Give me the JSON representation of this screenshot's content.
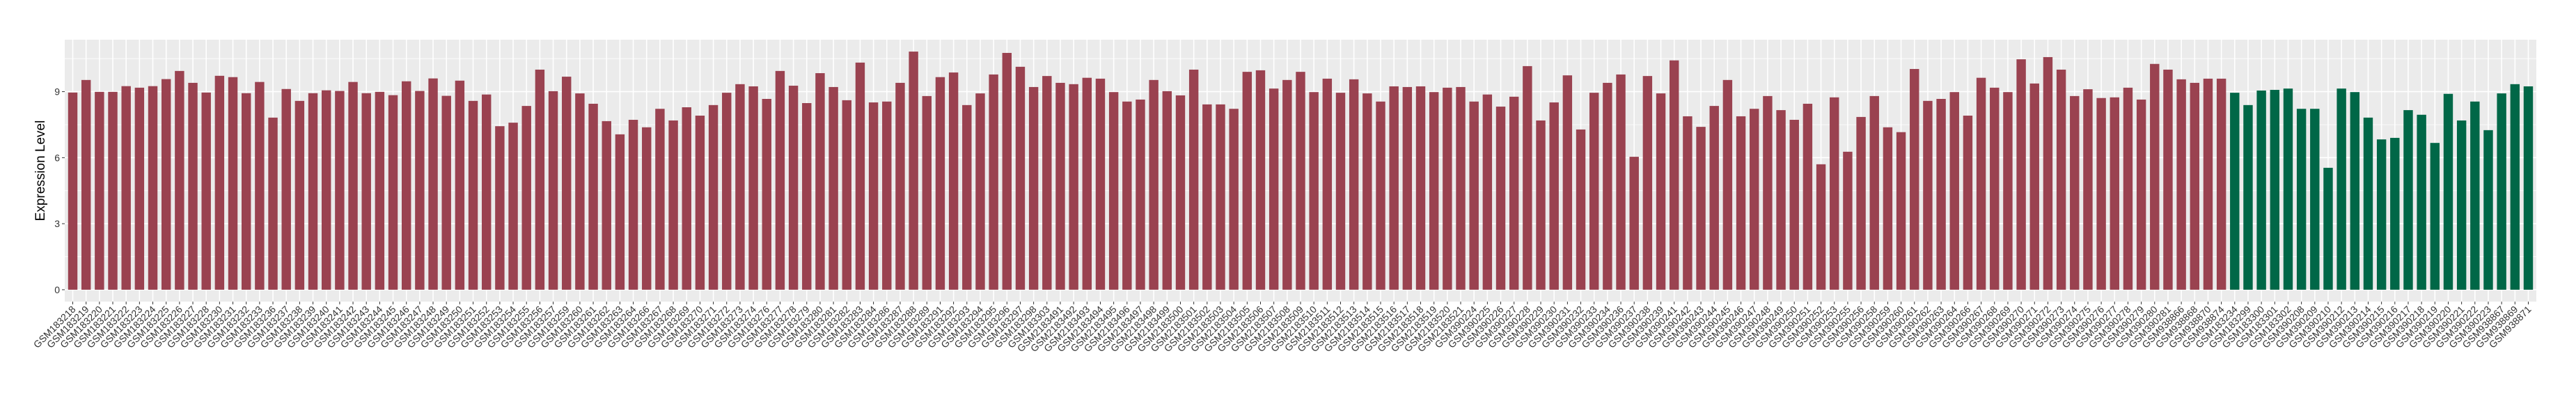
{
  "chart_data": {
    "type": "bar",
    "title": "",
    "xlabel": "",
    "ylabel": "Expression Level",
    "ylim": [
      -0.54,
      11.36
    ],
    "yticks": [
      0,
      3,
      6,
      9
    ],
    "yticks_minor": [
      1.5,
      4.5,
      7.5,
      10.5
    ],
    "grid": true,
    "legend": "none",
    "panel_background": "#EBEBEB",
    "grid_color": "#FFFFFF",
    "categories": [
      "GSM183218",
      "GSM183219",
      "GSM183220",
      "GSM183221",
      "GSM183222",
      "GSM183223",
      "GSM183224",
      "GSM183225",
      "GSM183226",
      "GSM183227",
      "GSM183228",
      "GSM183230",
      "GSM183231",
      "GSM183232",
      "GSM183233",
      "GSM183236",
      "GSM183237",
      "GSM183238",
      "GSM183239",
      "GSM183240",
      "GSM183241",
      "GSM183242",
      "GSM183243",
      "GSM183244",
      "GSM183245",
      "GSM183246",
      "GSM183247",
      "GSM183248",
      "GSM183249",
      "GSM183250",
      "GSM183251",
      "GSM183252",
      "GSM183253",
      "GSM183254",
      "GSM183255",
      "GSM183256",
      "GSM183257",
      "GSM183259",
      "GSM183260",
      "GSM183261",
      "GSM183262",
      "GSM183263",
      "GSM183264",
      "GSM183266",
      "GSM183267",
      "GSM183268",
      "GSM183269",
      "GSM183270",
      "GSM183271",
      "GSM183272",
      "GSM183273",
      "GSM183274",
      "GSM183276",
      "GSM183277",
      "GSM183278",
      "GSM183279",
      "GSM183280",
      "GSM183281",
      "GSM183282",
      "GSM183283",
      "GSM183284",
      "GSM183286",
      "GSM183287",
      "GSM183288",
      "GSM183289",
      "GSM183291",
      "GSM183292",
      "GSM183293",
      "GSM183294",
      "GSM183295",
      "GSM183296",
      "GSM183297",
      "GSM183298",
      "GSM183303",
      "GSM2183491",
      "GSM2183492",
      "GSM2183493",
      "GSM2183494",
      "GSM2183495",
      "GSM2183496",
      "GSM2183497",
      "GSM2183498",
      "GSM2183499",
      "GSM2183500",
      "GSM2183501",
      "GSM2183502",
      "GSM2183503",
      "GSM2183504",
      "GSM2183505",
      "GSM2183506",
      "GSM2183507",
      "GSM2183508",
      "GSM2183509",
      "GSM2183510",
      "GSM2183511",
      "GSM2183512",
      "GSM2183513",
      "GSM2183514",
      "GSM2183515",
      "GSM2183516",
      "GSM2183517",
      "GSM2183518",
      "GSM2183519",
      "GSM2183520",
      "GSM2183521",
      "GSM390224",
      "GSM390225",
      "GSM390226",
      "GSM390227",
      "GSM390228",
      "GSM390229",
      "GSM390230",
      "GSM390231",
      "GSM390232",
      "GSM390233",
      "GSM390234",
      "GSM390236",
      "GSM390237",
      "GSM390238",
      "GSM390239",
      "GSM390241",
      "GSM390242",
      "GSM390243",
      "GSM390244",
      "GSM390245",
      "GSM390246",
      "GSM390247",
      "GSM390248",
      "GSM390249",
      "GSM390250",
      "GSM390251",
      "GSM390252",
      "GSM390253",
      "GSM390255",
      "GSM390256",
      "GSM390258",
      "GSM390259",
      "GSM390260",
      "GSM390261",
      "GSM390262",
      "GSM390263",
      "GSM390264",
      "GSM390266",
      "GSM390267",
      "GSM390268",
      "GSM390269",
      "GSM390270",
      "GSM390271",
      "GSM390272",
      "GSM390273",
      "GSM390274",
      "GSM390275",
      "GSM390276",
      "GSM390277",
      "GSM390278",
      "GSM390279",
      "GSM390280",
      "GSM390281",
      "GSM938866",
      "GSM938868",
      "GSM938870",
      "GSM938874",
      "GSM183234",
      "GSM183299",
      "GSM183300",
      "GSM183301",
      "GSM183302",
      "GSM390208",
      "GSM390209",
      "GSM390210",
      "GSM390212",
      "GSM390213",
      "GSM390214",
      "GSM390215",
      "GSM390216",
      "GSM390217",
      "GSM390218",
      "GSM390219",
      "GSM390220",
      "GSM390221",
      "GSM390222",
      "GSM390223",
      "GSM938867",
      "GSM938869",
      "GSM938871"
    ],
    "values": [
      8.96,
      9.53,
      8.99,
      8.99,
      9.25,
      9.18,
      9.25,
      9.57,
      9.94,
      9.4,
      8.96,
      9.72,
      9.66,
      8.93,
      9.44,
      7.82,
      9.12,
      8.58,
      8.93,
      9.06,
      9.03,
      9.44,
      8.93,
      8.99,
      8.84,
      9.47,
      9.03,
      9.6,
      8.81,
      9.5,
      8.58,
      8.87,
      7.43,
      7.59,
      8.35,
      10.0,
      9.02,
      9.68,
      8.92,
      8.45,
      7.66,
      7.06,
      7.72,
      7.38,
      8.22,
      7.69,
      8.29,
      7.91,
      8.39,
      8.95,
      9.34,
      9.24,
      8.67,
      9.94,
      9.27,
      8.48,
      9.84,
      9.21,
      8.61,
      10.32,
      8.51,
      8.55,
      9.4,
      10.82,
      8.8,
      9.66,
      9.87,
      8.39,
      8.92,
      9.78,
      10.76,
      10.13,
      9.21,
      9.71,
      9.4,
      9.34,
      9.63,
      9.59,
      8.98,
      8.55,
      8.64,
      9.53,
      9.02,
      8.83,
      10.0,
      8.42,
      8.42,
      8.22,
      9.9,
      9.97,
      9.14,
      9.53,
      9.9,
      8.98,
      9.59,
      8.95,
      9.56,
      8.92,
      8.55,
      9.24,
      9.21,
      9.24,
      8.98,
      9.18,
      9.21,
      8.55,
      8.87,
      8.32,
      8.77,
      10.16,
      7.69,
      8.51,
      9.74,
      7.28,
      8.95,
      9.4,
      9.78,
      6.04,
      9.71,
      8.92,
      10.42,
      7.88,
      7.4,
      8.35,
      9.53,
      7.88,
      8.22,
      8.8,
      8.16,
      7.72,
      8.45,
      5.7,
      8.74,
      6.27,
      7.85,
      8.8,
      7.38,
      7.16,
      10.03,
      8.58,
      8.67,
      8.98,
      7.91,
      9.63,
      9.18,
      8.98,
      10.47,
      9.37,
      10.57,
      10.0,
      8.8,
      9.11,
      8.71,
      8.74,
      9.18,
      8.64,
      10.26,
      10.0,
      9.56,
      9.4,
      9.59,
      9.59,
      8.95,
      8.39,
      9.05,
      9.08,
      9.14,
      8.22,
      8.22,
      5.54,
      9.14,
      8.98,
      7.82,
      6.83,
      6.9,
      8.16,
      7.95,
      6.67,
      8.9,
      7.69,
      8.55,
      7.25,
      8.92,
      9.34,
      9.24
    ],
    "bar_colors": [
      "#9A4250",
      "#9A4250",
      "#9A4250",
      "#9A4250",
      "#9A4250",
      "#9A4250",
      "#9A4250",
      "#9A4250",
      "#9A4250",
      "#9A4250",
      "#9A4250",
      "#9A4250",
      "#9A4250",
      "#9A4250",
      "#9A4250",
      "#9A4250",
      "#9A4250",
      "#9A4250",
      "#9A4250",
      "#9A4250",
      "#9A4250",
      "#9A4250",
      "#9A4250",
      "#9A4250",
      "#9A4250",
      "#9A4250",
      "#9A4250",
      "#9A4250",
      "#9A4250",
      "#9A4250",
      "#9A4250",
      "#9A4250",
      "#9A4250",
      "#9A4250",
      "#9A4250",
      "#9A4250",
      "#9A4250",
      "#9A4250",
      "#9A4250",
      "#9A4250",
      "#9A4250",
      "#9A4250",
      "#9A4250",
      "#9A4250",
      "#9A4250",
      "#9A4250",
      "#9A4250",
      "#9A4250",
      "#9A4250",
      "#9A4250",
      "#9A4250",
      "#9A4250",
      "#9A4250",
      "#9A4250",
      "#9A4250",
      "#9A4250",
      "#9A4250",
      "#9A4250",
      "#9A4250",
      "#9A4250",
      "#9A4250",
      "#9A4250",
      "#9A4250",
      "#9A4250",
      "#9A4250",
      "#9A4250",
      "#9A4250",
      "#9A4250",
      "#9A4250",
      "#9A4250",
      "#9A4250",
      "#9A4250",
      "#9A4250",
      "#9A4250",
      "#9A4250",
      "#9A4250",
      "#9A4250",
      "#9A4250",
      "#9A4250",
      "#9A4250",
      "#9A4250",
      "#9A4250",
      "#9A4250",
      "#9A4250",
      "#9A4250",
      "#9A4250",
      "#9A4250",
      "#9A4250",
      "#9A4250",
      "#9A4250",
      "#9A4250",
      "#9A4250",
      "#9A4250",
      "#9A4250",
      "#9A4250",
      "#9A4250",
      "#9A4250",
      "#9A4250",
      "#9A4250",
      "#9A4250",
      "#9A4250",
      "#9A4250",
      "#9A4250",
      "#9A4250",
      "#9A4250",
      "#9A4250",
      "#9A4250",
      "#9A4250",
      "#9A4250",
      "#9A4250",
      "#9A4250",
      "#9A4250",
      "#9A4250",
      "#9A4250",
      "#9A4250",
      "#9A4250",
      "#9A4250",
      "#9A4250",
      "#9A4250",
      "#9A4250",
      "#9A4250",
      "#9A4250",
      "#9A4250",
      "#9A4250",
      "#9A4250",
      "#9A4250",
      "#9A4250",
      "#9A4250",
      "#9A4250",
      "#9A4250",
      "#9A4250",
      "#9A4250",
      "#9A4250",
      "#9A4250",
      "#9A4250",
      "#9A4250",
      "#9A4250",
      "#9A4250",
      "#9A4250",
      "#9A4250",
      "#9A4250",
      "#9A4250",
      "#9A4250",
      "#9A4250",
      "#9A4250",
      "#9A4250",
      "#9A4250",
      "#9A4250",
      "#9A4250",
      "#9A4250",
      "#9A4250",
      "#9A4250",
      "#9A4250",
      "#9A4250",
      "#9A4250",
      "#9A4250",
      "#9A4250",
      "#9A4250",
      "#9A4250",
      "#9A4250",
      "#9A4250",
      "#9A4250",
      "#006747",
      "#006747",
      "#006747",
      "#006747",
      "#006747",
      "#006747",
      "#006747",
      "#006747",
      "#006747",
      "#006747",
      "#006747",
      "#006747",
      "#006747",
      "#006747",
      "#006747",
      "#006747",
      "#006747",
      "#006747",
      "#006747",
      "#006747",
      "#006747",
      "#006747",
      "#006747"
    ]
  }
}
